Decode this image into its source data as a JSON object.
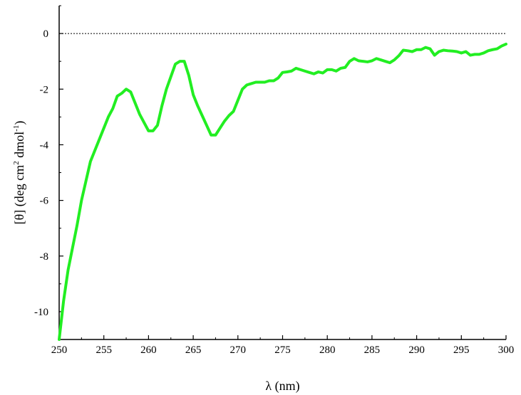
{
  "chart_data": {
    "type": "line",
    "xlabel": "λ (nm)",
    "ylabel": "[θ] (deg cm² dmol⁻¹)",
    "ylabel_parts": {
      "part1": "[θ] (deg cm",
      "sup1": "2",
      "part2": " dmol",
      "sup2": "-1",
      "part3": ")"
    },
    "xlim": [
      250,
      300
    ],
    "ylim": [
      -11,
      1
    ],
    "x_ticks": [
      250,
      255,
      260,
      265,
      270,
      275,
      280,
      285,
      290,
      295,
      300
    ],
    "y_ticks": [
      0,
      -2,
      -4,
      -6,
      -8,
      -10
    ],
    "zero_reference_line": true,
    "grid": false,
    "line_color": "#22ee22",
    "series": [
      {
        "x": [
          250,
          250.5,
          251,
          251.5,
          252,
          252.5,
          253,
          253.5,
          254,
          254.5,
          255,
          255.5,
          256,
          256.5,
          257,
          257.5,
          258,
          258.5,
          259,
          259.5,
          260,
          260.5,
          261,
          261.5,
          262,
          262.5,
          263,
          263.5,
          264,
          264.5,
          265,
          265.5,
          266,
          266.5,
          267,
          267.5,
          268,
          268.5,
          269,
          269.5,
          270,
          270.5,
          271,
          271.5,
          272,
          272.5,
          273,
          273.5,
          274,
          274.5,
          275,
          275.5,
          276,
          276.5,
          277,
          277.5,
          278,
          278.5,
          279,
          279.5,
          280,
          280.5,
          281,
          281.5,
          282,
          282.5,
          283,
          283.5,
          284,
          284.5,
          285,
          285.5,
          286,
          286.5,
          287,
          287.5,
          288,
          288.5,
          289,
          289.5,
          290,
          290.5,
          291,
          291.5,
          292,
          292.5,
          293,
          293.5,
          294,
          294.5,
          295,
          295.5,
          296,
          296.5,
          297,
          297.5,
          298,
          298.5,
          299,
          299.5,
          300
        ],
        "values": [
          -11.0,
          -9.6,
          -8.5,
          -7.7,
          -6.9,
          -6.0,
          -5.3,
          -4.6,
          -4.2,
          -3.8,
          -3.4,
          -3.0,
          -2.7,
          -2.25,
          -2.15,
          -2.0,
          -2.1,
          -2.5,
          -2.9,
          -3.2,
          -3.5,
          -3.5,
          -3.3,
          -2.6,
          -2.0,
          -1.55,
          -1.1,
          -1.0,
          -1.0,
          -1.5,
          -2.2,
          -2.6,
          -2.95,
          -3.3,
          -3.65,
          -3.65,
          -3.4,
          -3.15,
          -2.95,
          -2.8,
          -2.4,
          -2.0,
          -1.85,
          -1.8,
          -1.75,
          -1.75,
          -1.75,
          -1.7,
          -1.7,
          -1.6,
          -1.4,
          -1.38,
          -1.35,
          -1.25,
          -1.3,
          -1.35,
          -1.4,
          -1.45,
          -1.38,
          -1.42,
          -1.3,
          -1.3,
          -1.35,
          -1.25,
          -1.22,
          -1.0,
          -0.9,
          -0.98,
          -1.0,
          -1.02,
          -0.98,
          -0.9,
          -0.95,
          -1.0,
          -1.05,
          -0.95,
          -0.8,
          -0.6,
          -0.62,
          -0.65,
          -0.58,
          -0.58,
          -0.5,
          -0.55,
          -0.78,
          -0.65,
          -0.6,
          -0.62,
          -0.63,
          -0.65,
          -0.7,
          -0.65,
          -0.78,
          -0.75,
          -0.75,
          -0.7,
          -0.62,
          -0.58,
          -0.55,
          -0.45,
          -0.38
        ]
      }
    ]
  }
}
